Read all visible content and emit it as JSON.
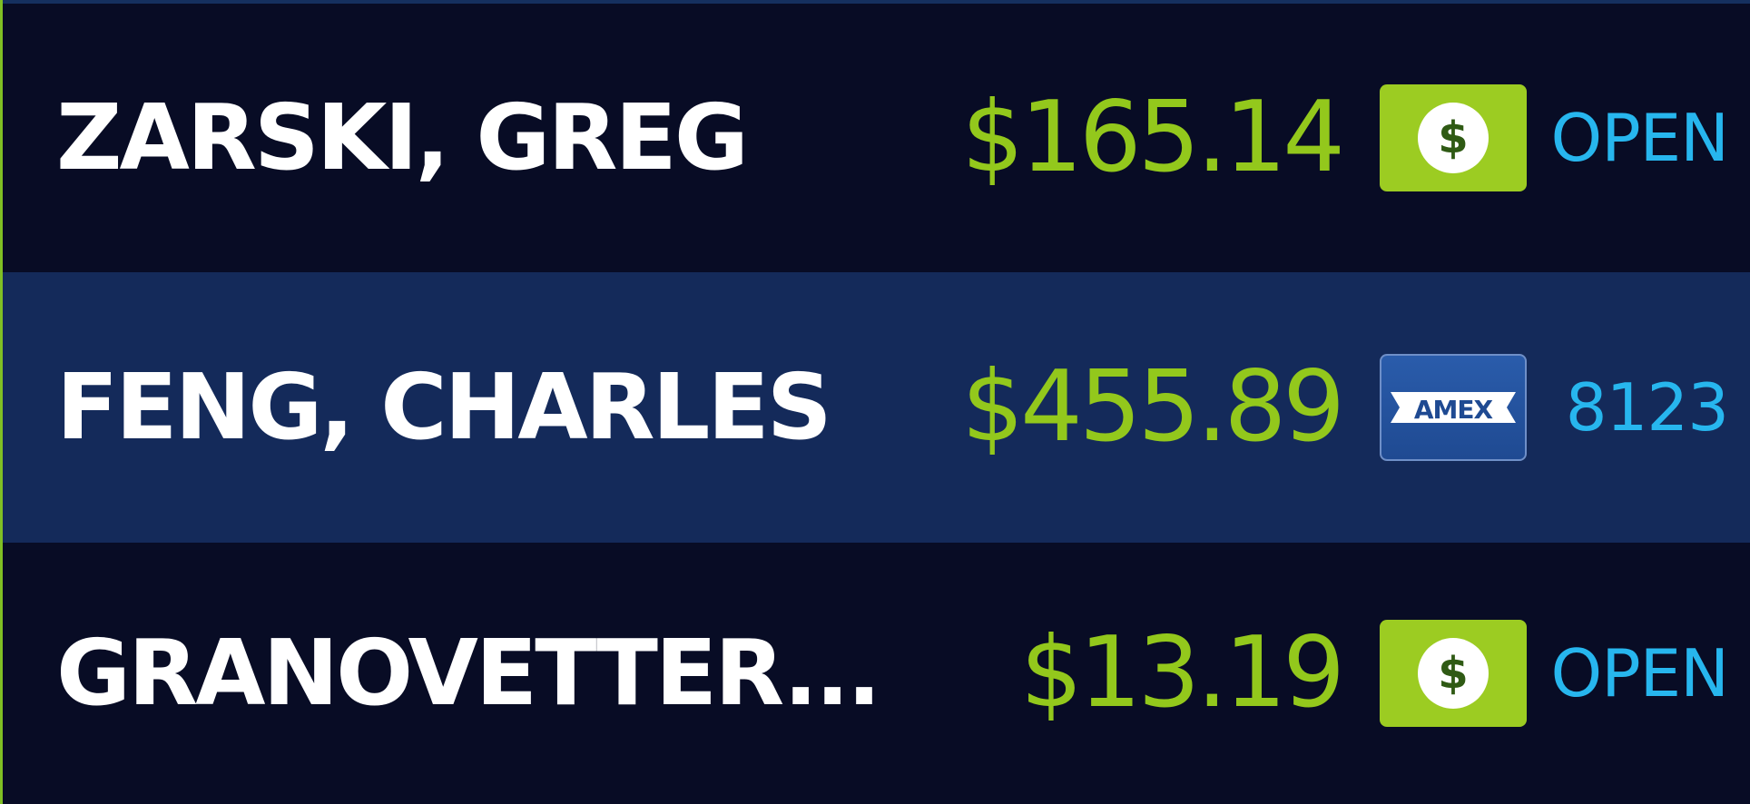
{
  "colors": {
    "background": "#080c25",
    "selected_row": "#142a5a",
    "name_text": "#ffffff",
    "amount_text": "#93c81c",
    "status_text": "#27b6ee",
    "cash_icon_bg": "#9ccc22",
    "amex_icon_bg": "#1f4a92",
    "left_accent": "#7fbf24"
  },
  "rows": [
    {
      "name": "ZARSKI, GREG",
      "amount": "$165.14",
      "payment_icon": "cash-icon",
      "payment_symbol": "$",
      "status": "OPEN",
      "selected": false
    },
    {
      "name": "FENG, CHARLES",
      "amount": "$455.89",
      "payment_icon": "amex-card-icon",
      "payment_symbol": "AMEX",
      "status": "8123",
      "selected": true
    },
    {
      "name": "GRANOVETTER...",
      "amount": "$13.19",
      "payment_icon": "cash-icon",
      "payment_symbol": "$",
      "status": "OPEN",
      "selected": false
    }
  ]
}
